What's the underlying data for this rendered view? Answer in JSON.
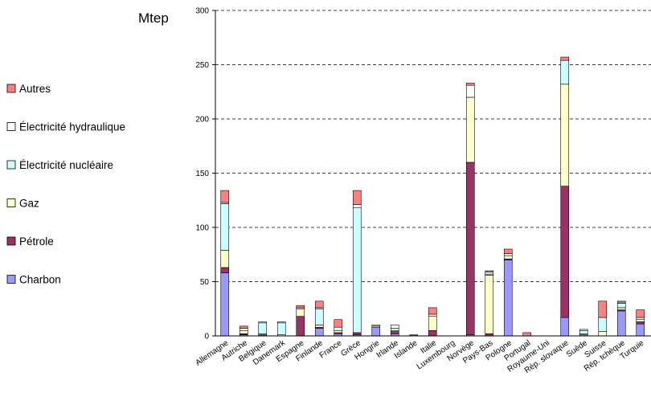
{
  "chart_data": {
    "type": "bar",
    "stacked": true,
    "unit_label": "Mtep",
    "ylim": [
      0,
      300
    ],
    "yticks": [
      0,
      50,
      100,
      150,
      200,
      250,
      300
    ],
    "grid": "horizontal-dashed",
    "legend_position": "left",
    "categories": [
      "Allemagne",
      "Autriche",
      "Belgique",
      "Danemark",
      "Espagne",
      "Finlande",
      "France",
      "Grèce",
      "Hongrie",
      "Irlande",
      "Islande",
      "Italie",
      "Luxembourg",
      "Norvège",
      "Pays-Bas",
      "Pologne",
      "Portugal",
      "Royaume-Uni",
      "Rép. slovaque",
      "Suède",
      "Suisse",
      "Rép. tchèque",
      "Turquie"
    ],
    "series": [
      {
        "name": "Charbon",
        "color": "#9999ff",
        "values": [
          58,
          1,
          0,
          0,
          0,
          7,
          2,
          1,
          8,
          2,
          0,
          0,
          0,
          1,
          0,
          70,
          0,
          0,
          17,
          1,
          0,
          23,
          11
        ]
      },
      {
        "name": "Pétrole",
        "color": "#993366",
        "values": [
          5,
          1,
          1,
          0,
          18,
          1,
          1,
          2,
          0,
          2,
          1,
          5,
          0,
          159,
          2,
          1,
          0,
          0,
          121,
          0,
          0,
          1,
          2
        ]
      },
      {
        "name": "Gaz",
        "color": "#ffffcc",
        "values": [
          16,
          3,
          1,
          1,
          7,
          2,
          2,
          0,
          1,
          1,
          0,
          13,
          0,
          60,
          54,
          3,
          0,
          0,
          94,
          1,
          4,
          2,
          2
        ]
      },
      {
        "name": "Électricité nucléaire",
        "color": "#ccffff",
        "values": [
          43,
          0,
          10,
          11,
          0,
          15,
          3,
          115,
          0,
          2,
          0,
          0,
          0,
          0,
          1,
          0,
          0,
          0,
          22,
          3,
          13,
          4,
          2
        ]
      },
      {
        "name": "Électricité hydraulique",
        "color": "#ffffff",
        "values": [
          1,
          2,
          1,
          1,
          1,
          1,
          0,
          3,
          1,
          3,
          0,
          2,
          0,
          11,
          2,
          2,
          0,
          0,
          0,
          1,
          0,
          1,
          0
        ]
      },
      {
        "name": "Autres",
        "color": "#ff8080",
        "values": [
          11,
          2,
          0,
          0,
          2,
          6,
          7,
          13,
          0,
          0,
          0,
          6,
          0,
          2,
          1,
          4,
          3,
          0,
          3,
          0,
          15,
          1,
          7
        ]
      }
    ]
  }
}
